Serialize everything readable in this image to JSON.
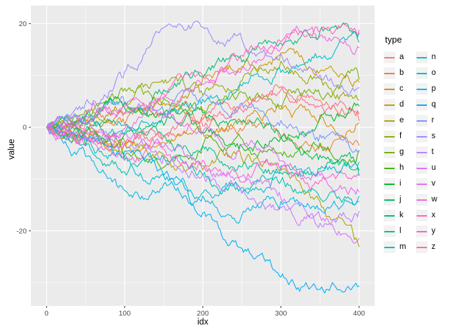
{
  "chart_data": {
    "type": "line",
    "title": "",
    "xlabel": "idx",
    "ylabel": "value",
    "grid": true,
    "panel_bg": "#EBEBEB",
    "grid_color": "#FFFFFF",
    "axis_text_color": "#4D4D4D",
    "tick_mark_color": "#333333",
    "xlim": [
      -20,
      420
    ],
    "ylim": [
      -34.5,
      23.5
    ],
    "x_ticks": [
      0,
      100,
      200,
      300,
      400
    ],
    "x_tick_labels": [
      "0",
      "100",
      "200",
      "300",
      "400"
    ],
    "x_minor_ticks": [
      50,
      150,
      250,
      350
    ],
    "y_ticks": [
      -20,
      0,
      20
    ],
    "y_tick_labels": [
      "-20",
      "0",
      "20"
    ],
    "y_minor_ticks": [
      -30,
      -10,
      10
    ],
    "legend": {
      "title": "type",
      "position": "right",
      "columns": 2
    },
    "x": [
      0,
      50,
      100,
      150,
      200,
      250,
      300,
      350,
      400
    ],
    "series": [
      {
        "name": "a",
        "color": "#F8766D",
        "values": [
          0,
          -1,
          -3,
          -2,
          2,
          5,
          8,
          6,
          3
        ]
      },
      {
        "name": "b",
        "color": "#EC823D",
        "values": [
          0,
          2,
          1,
          3,
          2,
          0,
          -2,
          -4,
          -3
        ]
      },
      {
        "name": "c",
        "color": "#DB8E00",
        "values": [
          0,
          -2,
          -4,
          -3,
          -1,
          1,
          4,
          2,
          1
        ]
      },
      {
        "name": "d",
        "color": "#C99800",
        "values": [
          0,
          1,
          3,
          5,
          9,
          12,
          14,
          11,
          9
        ]
      },
      {
        "name": "e",
        "color": "#B2A100",
        "values": [
          0,
          -1,
          -2,
          -5,
          -8,
          -6,
          -9,
          -15,
          -23
        ]
      },
      {
        "name": "f",
        "color": "#97A900",
        "values": [
          0,
          2,
          5,
          8,
          6,
          9,
          12,
          9,
          5
        ]
      },
      {
        "name": "g",
        "color": "#74B000",
        "values": [
          0,
          3,
          7,
          5,
          3,
          6,
          4,
          7,
          10
        ]
      },
      {
        "name": "h",
        "color": "#41B500",
        "values": [
          0,
          -2,
          -5,
          -7,
          -4,
          -2,
          -5,
          -3,
          -5
        ]
      },
      {
        "name": "i",
        "color": "#00BA25",
        "values": [
          0,
          1,
          4,
          2,
          -1,
          -4,
          -2,
          1,
          4
        ]
      },
      {
        "name": "j",
        "color": "#00BC55",
        "values": [
          0,
          -3,
          -2,
          0,
          3,
          1,
          -2,
          -6,
          -8
        ]
      },
      {
        "name": "k",
        "color": "#00BE76",
        "values": [
          0,
          2,
          4,
          7,
          10,
          13,
          16,
          18,
          17
        ]
      },
      {
        "name": "l",
        "color": "#00C092",
        "values": [
          0,
          -1,
          1,
          -2,
          -4,
          -7,
          -9,
          -8,
          -9
        ]
      },
      {
        "name": "m",
        "color": "#00C0AC",
        "values": [
          0,
          -4,
          -8,
          -6,
          -9,
          -12,
          -10,
          -13,
          -15
        ]
      },
      {
        "name": "n",
        "color": "#00BFC2",
        "values": [
          0,
          1,
          -1,
          2,
          5,
          8,
          11,
          14,
          18
        ]
      },
      {
        "name": "o",
        "color": "#00BCD6",
        "values": [
          0,
          -2,
          -6,
          -9,
          -13,
          -11,
          -8,
          -9,
          -7
        ]
      },
      {
        "name": "p",
        "color": "#00B7E8",
        "values": [
          0,
          -5,
          -13,
          -11,
          -14,
          -17,
          -15,
          -16,
          -14
        ]
      },
      {
        "name": "q",
        "color": "#00AEF7",
        "values": [
          0,
          -2,
          -5,
          -9,
          -17,
          -24,
          -29,
          -31,
          -30
        ]
      },
      {
        "name": "r",
        "color": "#6F98FF",
        "values": [
          0,
          2,
          5,
          3,
          6,
          4,
          1,
          -2,
          -5
        ]
      },
      {
        "name": "s",
        "color": "#9A8CFF",
        "values": [
          0,
          4,
          10,
          19,
          20,
          17,
          14,
          10,
          7
        ]
      },
      {
        "name": "t",
        "color": "#BD80FF",
        "values": [
          0,
          -1,
          -3,
          -6,
          -9,
          -12,
          -16,
          -19,
          -17
        ]
      },
      {
        "name": "u",
        "color": "#D575FE",
        "values": [
          0,
          1,
          -2,
          -4,
          -7,
          -10,
          -13,
          -17,
          -21
        ]
      },
      {
        "name": "v",
        "color": "#E76BF3",
        "values": [
          0,
          -2,
          0,
          2,
          -1,
          -4,
          -7,
          -9,
          -12
        ]
      },
      {
        "name": "w",
        "color": "#F364E4",
        "values": [
          0,
          2,
          4,
          6,
          9,
          12,
          15,
          17,
          15
        ]
      },
      {
        "name": "x",
        "color": "#FB61D2",
        "values": [
          0,
          -3,
          -6,
          -4,
          -7,
          -10,
          -8,
          -11,
          -9
        ]
      },
      {
        "name": "y",
        "color": "#FF62BD",
        "values": [
          0,
          1,
          3,
          6,
          10,
          14,
          17,
          19,
          18
        ]
      },
      {
        "name": "z",
        "color": "#FF6C91",
        "values": [
          0,
          -1,
          -4,
          -2,
          1,
          4,
          7,
          4,
          2
        ]
      }
    ]
  }
}
